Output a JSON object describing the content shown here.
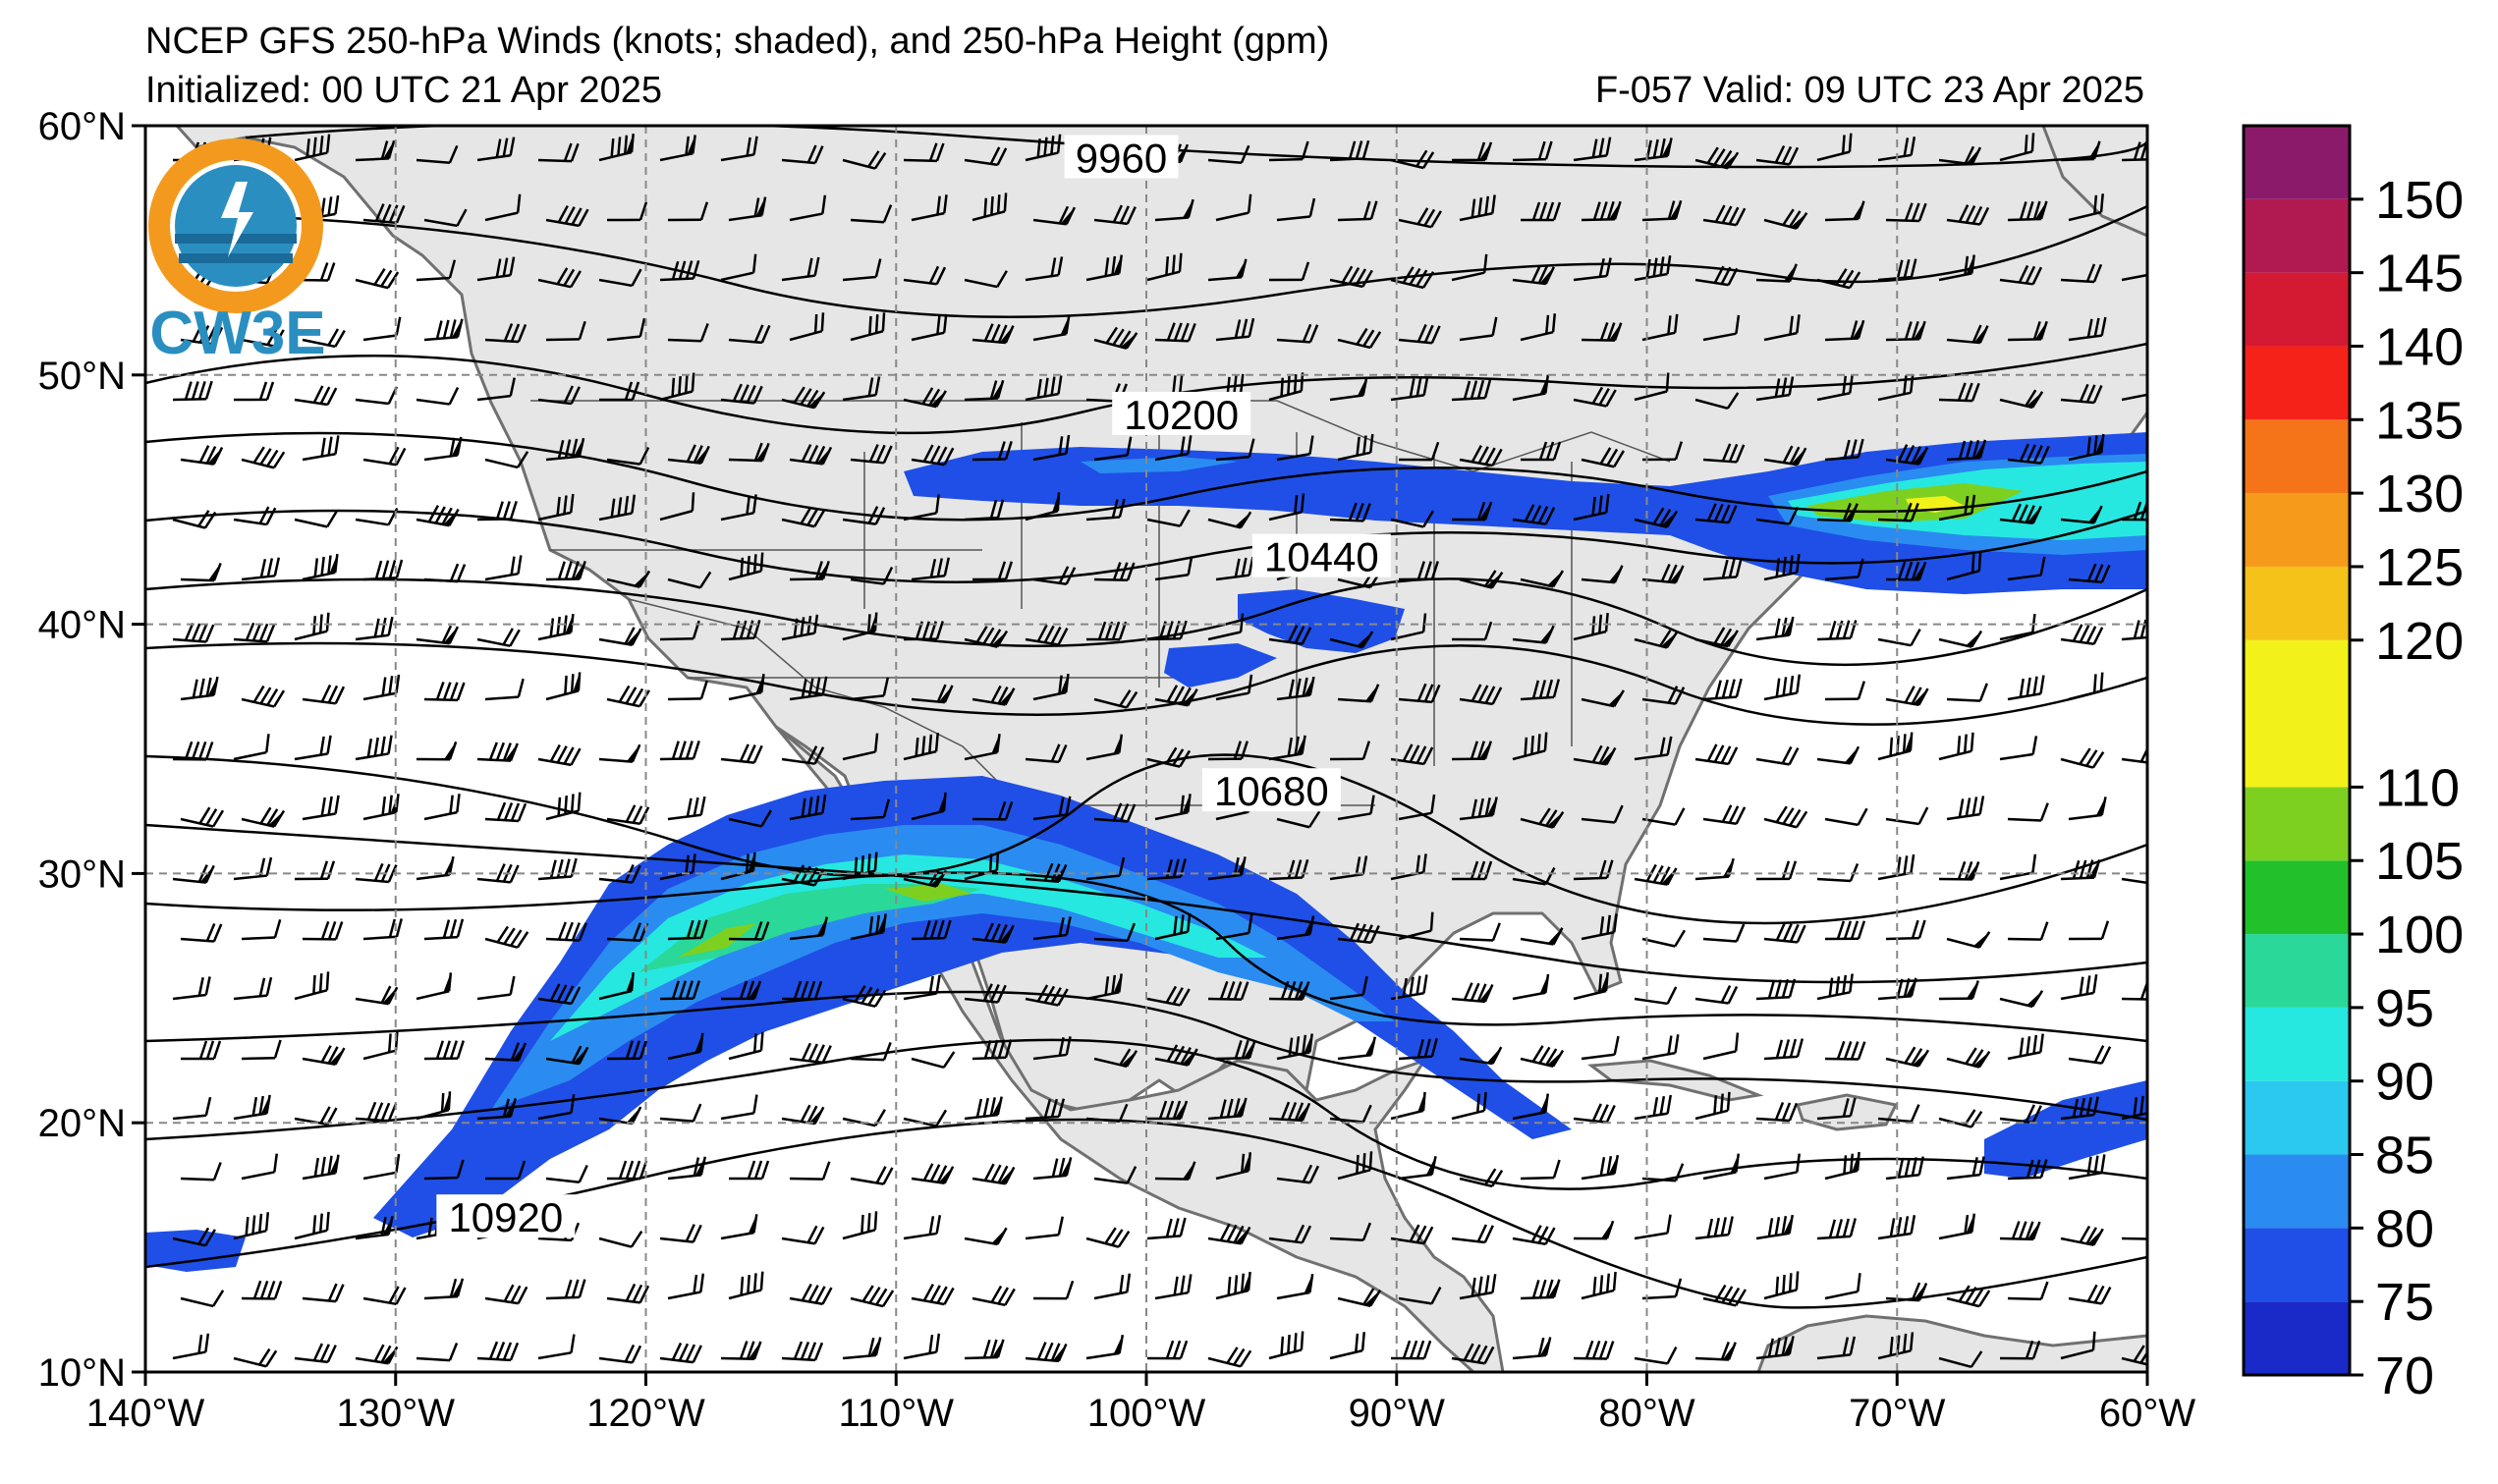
{
  "header": {
    "title": "NCEP GFS 250-hPa Winds (knots; shaded), and 250-hPa Height (gpm)",
    "initialized": "Initialized: 00 UTC 21 Apr 2025",
    "valid": "F-057  Valid: 09 UTC 23 Apr 2025"
  },
  "logo": {
    "text": "CW3E",
    "colors": {
      "orange": "#f39a1e",
      "blue": "#2a8fc0",
      "dark": "#1a6a9a"
    }
  },
  "map": {
    "lon_range": [
      -140,
      -60
    ],
    "lat_range": [
      10,
      60
    ],
    "lon_ticks": [
      {
        "lon": -140,
        "label": "140°W"
      },
      {
        "lon": -130,
        "label": "130°W"
      },
      {
        "lon": -120,
        "label": "120°W"
      },
      {
        "lon": -110,
        "label": "110°W"
      },
      {
        "lon": -100,
        "label": "100°W"
      },
      {
        "lon": -90,
        "label": "90°W"
      },
      {
        "lon": -80,
        "label": "80°W"
      },
      {
        "lon": -70,
        "label": "70°W"
      },
      {
        "lon": -60,
        "label": "60°W"
      }
    ],
    "lat_ticks": [
      {
        "lat": 10,
        "label": "10°N"
      },
      {
        "lat": 20,
        "label": "20°N"
      },
      {
        "lat": 30,
        "label": "30°N"
      },
      {
        "lat": 40,
        "label": "40°N"
      },
      {
        "lat": 50,
        "label": "50°N"
      },
      {
        "lat": 60,
        "label": "60°N"
      }
    ],
    "land_color": "#e6e6e6",
    "coast_color": "#707070",
    "contour_labels": [
      {
        "text": "9960",
        "lon": -101,
        "lat": 58.6
      },
      {
        "text": "10200",
        "lon": -98.6,
        "lat": 48.3
      },
      {
        "text": "10440",
        "lon": -93,
        "lat": 42.6
      },
      {
        "text": "10680",
        "lon": -95,
        "lat": 33.2
      },
      {
        "text": "10920",
        "lon": -125.6,
        "lat": 16.1
      }
    ]
  },
  "colorbar": {
    "levels": [
      70,
      75,
      80,
      85,
      90,
      95,
      100,
      105,
      110,
      120,
      125,
      130,
      135,
      140,
      145,
      150,
      155
    ],
    "labels": [
      "70",
      "75",
      "80",
      "85",
      "90",
      "95",
      "100",
      "105",
      "110",
      "120",
      "125",
      "130",
      "135",
      "140",
      "145",
      "150"
    ],
    "colors": [
      "#1a2ac8",
      "#1f4fe6",
      "#2a8cf0",
      "#2bc8f0",
      "#26e8e0",
      "#2ad89a",
      "#22c02a",
      "#7ed020",
      "#f2f21a",
      "#f5c21a",
      "#f59a1a",
      "#f5741a",
      "#f5221a",
      "#d41a32",
      "#b01a50",
      "#8c1a6a",
      "#6c1e8c"
    ]
  }
}
